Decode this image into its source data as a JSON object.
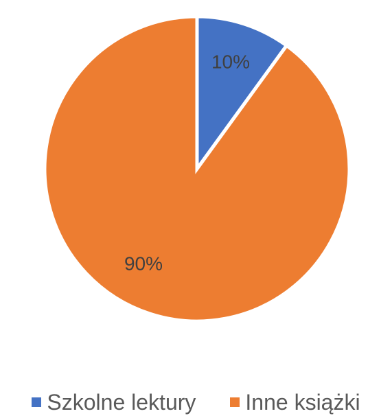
{
  "chart_data": {
    "type": "pie",
    "title": "",
    "categories": [
      "Szkolne lektury",
      "Inne książki"
    ],
    "values": [
      10,
      90
    ],
    "data_labels": [
      "10%",
      "90%"
    ],
    "colors": [
      "#4472C4",
      "#ED7D31"
    ],
    "legend_position": "bottom",
    "start_angle": "12 o'clock, clockwise"
  }
}
